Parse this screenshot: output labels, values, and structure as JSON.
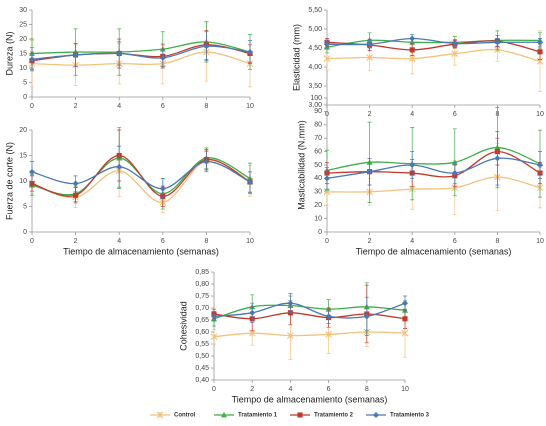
{
  "chart_data": [
    {
      "type": "line",
      "y_label": "Dureza (N)",
      "xlim": [
        0,
        10
      ],
      "xticks": [
        0,
        2,
        4,
        6,
        8,
        10
      ],
      "ylim": [
        0,
        30
      ],
      "yticks": [
        0,
        5,
        10,
        15,
        20,
        25,
        30
      ],
      "x": [
        0,
        2,
        4,
        6,
        8,
        10
      ],
      "series": [
        {
          "name": "Control",
          "color": "#f2c27e",
          "marker": "x",
          "values": [
            11.5,
            11,
            11.5,
            11.5,
            15.5,
            11.5
          ],
          "errors": [
            8,
            7,
            7,
            7,
            10,
            8
          ]
        },
        {
          "name": "Tratamiento 1",
          "color": "#3fae49",
          "marker": "triangle",
          "values": [
            15,
            15.5,
            15.5,
            16.5,
            19,
            15.5
          ],
          "errors": [
            5,
            8,
            8,
            6,
            7,
            6
          ]
        },
        {
          "name": "Tratamiento 2",
          "color": "#c0392b",
          "marker": "square",
          "values": [
            12.5,
            14.5,
            15,
            14,
            18,
            15
          ],
          "errors": [
            3,
            4,
            5,
            4,
            5,
            3
          ]
        },
        {
          "name": "Tratamiento 3",
          "color": "#4a78b5",
          "marker": "diamond",
          "values": [
            13,
            14.5,
            15,
            13.5,
            17.5,
            15.5
          ],
          "errors": [
            4,
            4,
            4,
            3,
            5,
            4
          ]
        }
      ]
    },
    {
      "type": "line",
      "y_label": "Elasticidad (mm)",
      "xlim": [
        0,
        10
      ],
      "xticks": [
        0,
        2,
        4,
        6,
        8,
        10
      ],
      "ylim": [
        3,
        5.5
      ],
      "yticks": [
        {
          "value": 3,
          "label": "3,00"
        },
        {
          "value": 3.5,
          "label": "3,50"
        },
        {
          "value": 4,
          "label": "4,00"
        },
        {
          "value": 4.5,
          "label": "4,50"
        },
        {
          "value": 5,
          "label": "5,00"
        },
        {
          "value": 5.5,
          "label": "5,50"
        }
      ],
      "x": [
        0,
        2,
        4,
        6,
        8,
        10
      ],
      "series": [
        {
          "name": "Control",
          "color": "#f2c27e",
          "marker": "x",
          "values": [
            4.22,
            4.25,
            4.22,
            4.35,
            4.45,
            4.15
          ],
          "errors": [
            0.3,
            0.35,
            0.4,
            0.3,
            0.3,
            0.8
          ]
        },
        {
          "name": "Tratamiento 1",
          "color": "#3fae49",
          "marker": "triangle",
          "values": [
            4.52,
            4.7,
            4.65,
            4.65,
            4.7,
            4.7
          ],
          "errors": [
            0.15,
            0.2,
            0.2,
            0.15,
            0.25,
            0.2
          ]
        },
        {
          "name": "Tratamiento 2",
          "color": "#c0392b",
          "marker": "square",
          "values": [
            4.65,
            4.58,
            4.45,
            4.6,
            4.68,
            4.4
          ],
          "errors": [
            0.1,
            0.15,
            0.15,
            0.1,
            0.15,
            0.2
          ]
        },
        {
          "name": "Tratamiento 3",
          "color": "#4a78b5",
          "marker": "diamond",
          "values": [
            4.6,
            4.6,
            4.75,
            4.62,
            4.65,
            4.65
          ],
          "errors": [
            0.1,
            0.1,
            0.1,
            0.1,
            0.1,
            0.1
          ]
        }
      ]
    },
    {
      "type": "line",
      "y_label": "Fuerza de corte (N)",
      "x_label": "Tiempo de almacenamiento (semanas)",
      "xlim": [
        0,
        10
      ],
      "xticks": [
        0,
        2,
        4,
        6,
        8,
        10
      ],
      "ylim": [
        0,
        20
      ],
      "yticks": [
        0,
        5,
        10,
        15,
        20
      ],
      "x": [
        0,
        2,
        4,
        6,
        8,
        10
      ],
      "series": [
        {
          "name": "Control",
          "color": "#f2c27e",
          "marker": "x",
          "values": [
            9.5,
            6.8,
            12,
            5.8,
            14,
            10
          ],
          "errors": [
            2,
            2,
            5,
            2,
            2,
            3
          ]
        },
        {
          "name": "Tratamiento 1",
          "color": "#3fae49",
          "marker": "triangle",
          "values": [
            9.2,
            7.5,
            14.5,
            7.5,
            14.5,
            10.5
          ],
          "errors": [
            2,
            1.5,
            6,
            3,
            2,
            3
          ]
        },
        {
          "name": "Tratamiento 2",
          "color": "#c0392b",
          "marker": "square",
          "values": [
            9.5,
            7.2,
            15,
            7,
            14.2,
            9.8
          ],
          "errors": [
            1.5,
            1.5,
            5,
            2,
            2,
            2
          ]
        },
        {
          "name": "Tratamiento 3",
          "color": "#4a78b5",
          "marker": "diamond",
          "values": [
            11.8,
            9.5,
            12.8,
            8.5,
            13.8,
            9.8
          ],
          "errors": [
            2,
            1.5,
            4,
            2,
            2,
            2
          ]
        }
      ]
    },
    {
      "type": "line",
      "y_label": "Masticabilidad (N.mm)",
      "x_label": "Tiempo de almacenamiento (semanas)",
      "xlim": [
        0,
        10
      ],
      "xticks": [
        0,
        2,
        4,
        6,
        8,
        10
      ],
      "ylim": [
        0,
        100
      ],
      "yticks": [
        0,
        10,
        20,
        30,
        40,
        50,
        60,
        70,
        80,
        90,
        100
      ],
      "x": [
        0,
        2,
        4,
        6,
        8,
        10
      ],
      "series": [
        {
          "name": "Control",
          "color": "#f2c27e",
          "marker": "x",
          "values": [
            30,
            30,
            32,
            33,
            41,
            33
          ],
          "errors": [
            10,
            10,
            15,
            20,
            25,
            15
          ]
        },
        {
          "name": "Tratamiento 1",
          "color": "#3fae49",
          "marker": "triangle",
          "values": [
            46,
            52,
            51,
            52,
            63,
            51
          ],
          "errors": [
            15,
            30,
            27,
            25,
            30,
            25
          ]
        },
        {
          "name": "Tratamiento 2",
          "color": "#c0392b",
          "marker": "square",
          "values": [
            44,
            45,
            44,
            42,
            60,
            44
          ],
          "errors": [
            8,
            10,
            10,
            8,
            10,
            8
          ]
        },
        {
          "name": "Tratamiento 3",
          "color": "#4a78b5",
          "marker": "diamond",
          "values": [
            40,
            45,
            50,
            44,
            55,
            50
          ],
          "errors": [
            8,
            10,
            10,
            8,
            20,
            10
          ]
        }
      ]
    },
    {
      "type": "line",
      "y_label": "Cohesividad",
      "x_label": "Tiempo de almacenamiento (semanas)",
      "xlim": [
        0,
        10
      ],
      "xticks": [
        0,
        2,
        4,
        6,
        8,
        10
      ],
      "ylim": [
        0.4,
        0.85
      ],
      "yticks": [
        {
          "value": 0.4,
          "label": "0,40"
        },
        {
          "value": 0.45,
          "label": "0,45"
        },
        {
          "value": 0.5,
          "label": "0,50"
        },
        {
          "value": 0.55,
          "label": "0,55"
        },
        {
          "value": 0.6,
          "label": "0,60"
        },
        {
          "value": 0.65,
          "label": "0,65"
        },
        {
          "value": 0.7,
          "label": "0,70"
        },
        {
          "value": 0.75,
          "label": "0,75"
        },
        {
          "value": 0.8,
          "label": "0,80"
        },
        {
          "value": 0.85,
          "label": "0,85"
        }
      ],
      "x": [
        0,
        2,
        4,
        6,
        8,
        10
      ],
      "series": [
        {
          "name": "Control",
          "color": "#f2c27e",
          "marker": "x",
          "values": [
            0.58,
            0.595,
            0.585,
            0.59,
            0.6,
            0.595
          ],
          "errors": [
            0.03,
            0.05,
            0.1,
            0.08,
            0.06,
            0.1
          ]
        },
        {
          "name": "Tratamiento 1",
          "color": "#3fae49",
          "marker": "triangle",
          "values": [
            0.655,
            0.705,
            0.71,
            0.695,
            0.705,
            0.69
          ],
          "errors": [
            0.03,
            0.05,
            0.04,
            0.04,
            0.1,
            0.04
          ]
        },
        {
          "name": "Tratamiento 2",
          "color": "#c0392b",
          "marker": "square",
          "values": [
            0.675,
            0.655,
            0.68,
            0.66,
            0.675,
            0.655
          ],
          "errors": [
            0.02,
            0.05,
            0.05,
            0.04,
            0.12,
            0.04
          ]
        },
        {
          "name": "Tratamiento 3",
          "color": "#4a78b5",
          "marker": "diamond",
          "values": [
            0.665,
            0.68,
            0.72,
            0.665,
            0.665,
            0.72
          ],
          "errors": [
            0.02,
            0.04,
            0.04,
            0.03,
            0.08,
            0.03
          ]
        }
      ]
    }
  ]
}
